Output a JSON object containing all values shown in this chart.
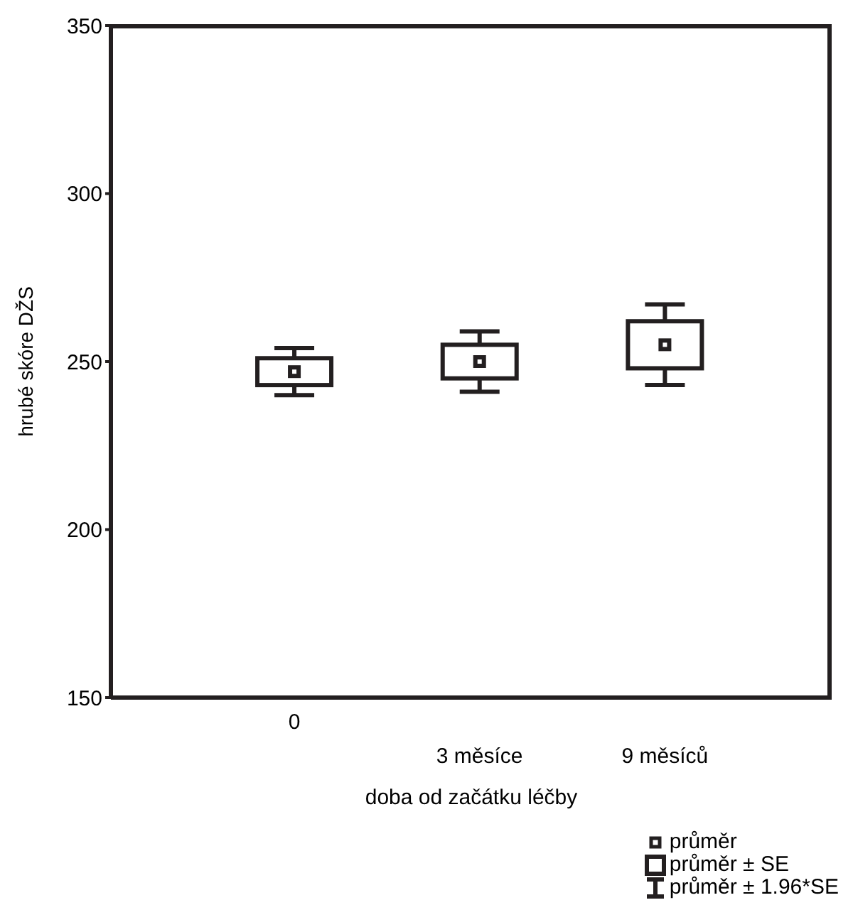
{
  "chart_data": {
    "type": "box",
    "xlabel": "doba od začátku léčby",
    "ylabel": "hrubé skóre DŽS",
    "categories": [
      "0",
      "3 měsíce",
      "9 měsíců"
    ],
    "boxes": [
      {
        "low": 240,
        "q1": 243,
        "median": 247,
        "q3": 251,
        "high": 254
      },
      {
        "low": 241,
        "q1": 245,
        "median": 250,
        "q3": 255,
        "high": 259
      },
      {
        "low": 243,
        "q1": 248,
        "median": 255,
        "q3": 262,
        "high": 267
      }
    ],
    "color": "#231f20",
    "ylim": [
      150,
      350
    ],
    "yticks": [
      150,
      200,
      250,
      300,
      350
    ],
    "annotations": [
      "průměr",
      "průměr ± SE",
      "průměr ± 1.96*SE"
    ]
  }
}
